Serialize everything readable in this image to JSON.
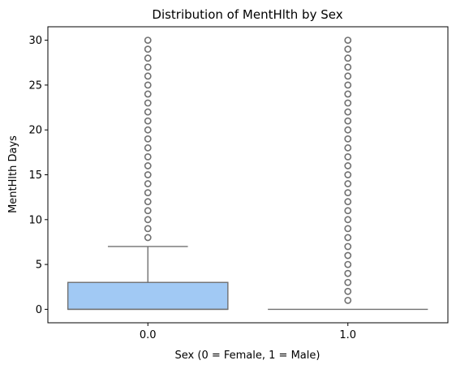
{
  "chart_data": {
    "type": "box",
    "title": "Distribution of MentHlth by Sex",
    "xlabel": "Sex (0 = Female, 1 = Male)",
    "ylabel": "MentHlth Days",
    "categories": [
      "0.0",
      "1.0"
    ],
    "ylim": [
      -1.5,
      31.5
    ],
    "yticks": [
      0,
      5,
      10,
      15,
      20,
      25,
      30
    ],
    "grid": false,
    "box_color": "#a1c9f4",
    "line_color": "#707070",
    "boxes": [
      {
        "category": "0.0",
        "q1": 0,
        "median": 0,
        "q3": 3,
        "whisker_low": 0,
        "whisker_high": 7,
        "outliers": [
          8,
          9,
          10,
          11,
          12,
          13,
          14,
          15,
          16,
          17,
          18,
          19,
          20,
          21,
          22,
          23,
          24,
          25,
          26,
          27,
          28,
          29,
          30
        ]
      },
      {
        "category": "1.0",
        "q1": 0,
        "median": 0,
        "q3": 0,
        "whisker_low": 0,
        "whisker_high": 0,
        "outliers": [
          1,
          2,
          3,
          4,
          5,
          6,
          7,
          8,
          9,
          10,
          11,
          12,
          13,
          14,
          15,
          16,
          17,
          18,
          19,
          20,
          21,
          22,
          23,
          24,
          25,
          26,
          27,
          28,
          29,
          30
        ]
      }
    ]
  }
}
